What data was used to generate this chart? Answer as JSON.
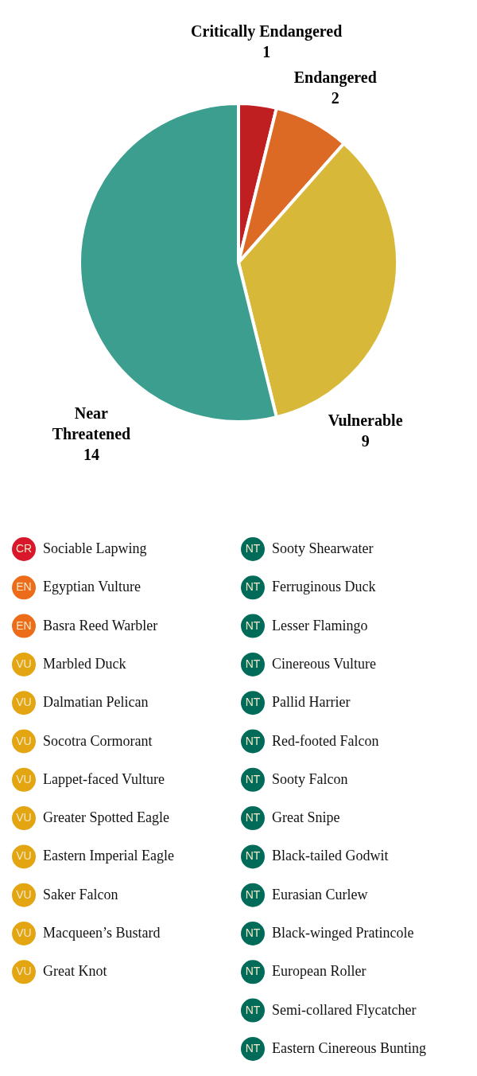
{
  "chart_data": [
    {
      "type": "pie",
      "categories": [
        "Critically Endangered",
        "Endangered",
        "Vulnerable",
        "Near Threatened"
      ],
      "values": [
        1,
        2,
        9,
        14
      ],
      "colors": [
        "#c01f22",
        "#dc6a25",
        "#d8b838",
        "#3b9e8f"
      ],
      "data_labels": true
    },
    {
      "type": "other",
      "categories": [
        "Sociable Lapwing",
        "Egyptian Vulture",
        "Basra Reed Warbler",
        "Marbled Duck",
        "Dalmatian Pelican",
        "Socotra Cormorant",
        "Lappet-faced Vulture",
        "Greater Spotted Eagle",
        "Eastern Imperial Eagle",
        "Saker Falcon",
        "Macqueen’s Bustard",
        "Great Knot",
        "Sooty Shearwater",
        "Ferruginous Duck",
        "Lesser Flamingo",
        "Cinereous Vulture",
        "Pallid Harrier",
        "Red-footed Falcon",
        "Sooty Falcon",
        "Great Snipe",
        "Black-tailed Godwit",
        "Eurasian Curlew",
        "Black-winged Pratincole",
        "European Roller",
        "Semi-collared Flycatcher",
        "Eastern Cinereous Bunting"
      ],
      "annotations": [
        "CR",
        "EN",
        "EN",
        "VU",
        "VU",
        "VU",
        "VU",
        "VU",
        "VU",
        "VU",
        "VU",
        "VU",
        "NT",
        "NT",
        "NT",
        "NT",
        "NT",
        "NT",
        "NT",
        "NT",
        "NT",
        "NT",
        "NT",
        "NT",
        "NT",
        "NT"
      ],
      "colors": [
        "#d9172b",
        "#ec6c1a",
        "#ec6c1a",
        "#e3a612",
        "#e3a612",
        "#e3a612",
        "#e3a612",
        "#e3a612",
        "#e3a612",
        "#e3a612",
        "#e3a612",
        "#e3a612",
        "#006b59",
        "#006b59",
        "#006b59",
        "#006b59",
        "#006b59",
        "#006b59",
        "#006b59",
        "#006b59",
        "#006b59",
        "#006b59",
        "#006b59",
        "#006b59",
        "#006b59",
        "#006b59"
      ]
    }
  ]
}
